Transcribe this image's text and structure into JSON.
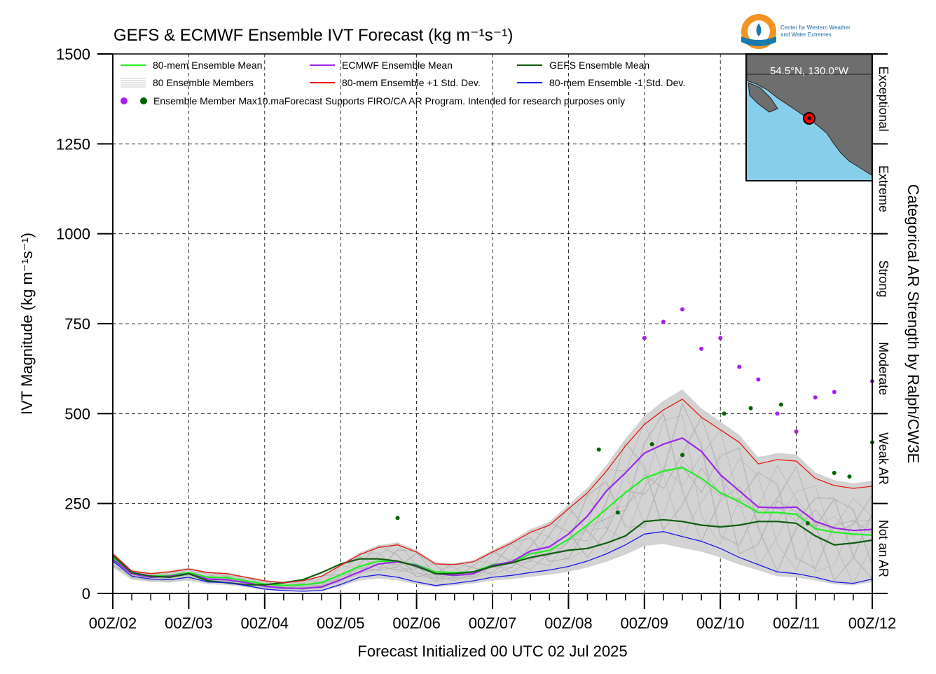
{
  "chart_data": {
    "type": "line",
    "title": "GEFS & ECMWF Ensemble IVT Forecast (kg m⁻¹s⁻¹)",
    "xlabel": "Forecast Initialized 00 UTC 02 Jul 2025",
    "ylabel": "IVT Magnitude (kg m⁻¹s⁻¹)",
    "right_label": "Categorical AR Strength by Ralph/CW3E",
    "ylim": [
      0,
      1500
    ],
    "xlim": [
      0,
      10
    ],
    "x_unit": "days since 00Z/02",
    "x_ticks": [
      0,
      1,
      2,
      3,
      4,
      5,
      6,
      7,
      8,
      9,
      10
    ],
    "x_tick_labels": [
      "00Z/02",
      "00Z/03",
      "00Z/04",
      "00Z/05",
      "00Z/06",
      "00Z/07",
      "00Z/08",
      "00Z/09",
      "00Z/10",
      "00Z/11",
      "00Z/12"
    ],
    "y_ticks": [
      0,
      250,
      500,
      750,
      1000,
      1250,
      1500
    ],
    "y_tick_labels": [
      "0",
      "250",
      "500",
      "750",
      "1000",
      "1250",
      "1500"
    ],
    "grid": true,
    "categories_ar": [
      {
        "label": "Not an AR",
        "min": 0,
        "max": 250
      },
      {
        "label": "Weak AR",
        "min": 250,
        "max": 500
      },
      {
        "label": "Moderate",
        "min": 500,
        "max": 750
      },
      {
        "label": "Strong",
        "min": 750,
        "max": 1000
      },
      {
        "label": "Extreme",
        "min": 1000,
        "max": 1250
      },
      {
        "label": "Exceptional",
        "min": 1250,
        "max": 1500
      }
    ],
    "legend": {
      "placement": "top-left",
      "items": [
        {
          "label": "80-mem Ensemble Mean",
          "color": "#22ee22",
          "kind": "line"
        },
        {
          "label": "ECMWF Ensemble Mean",
          "color": "#9b27e6",
          "kind": "line"
        },
        {
          "label": "GEFS Ensemble Mean",
          "color": "#0f5e0f",
          "kind": "line"
        },
        {
          "label": "80 Ensemble Members",
          "color": "#b4b4b4",
          "kind": "lines"
        },
        {
          "label": "80-mem Ensemble +1 Std. Dev.",
          "color": "#e8180e",
          "kind": "line"
        },
        {
          "label": "80-mem Ensemble -1 Std. Dev.",
          "color": "#1a1ae6",
          "kind": "line"
        }
      ],
      "note": "Ensemble Member Max10.maForecast Supports FIRO/CA AR Program. Intended for research purposes only"
    },
    "inset_label": "54.5°N, 130.0°W",
    "logo_text": [
      "Center for Western Weather",
      "and Water Extremes"
    ],
    "series": [
      {
        "name": "80-mem Ensemble Mean",
        "color": "#22ee22",
        "x": [
          0,
          0.25,
          0.5,
          0.75,
          1,
          1.25,
          1.5,
          1.75,
          2,
          2.25,
          2.5,
          2.75,
          3,
          3.25,
          3.5,
          3.75,
          4,
          4.25,
          4.5,
          4.75,
          5,
          5.25,
          5.5,
          5.75,
          6,
          6.25,
          6.5,
          6.75,
          7,
          7.25,
          7.5,
          7.75,
          8,
          8.25,
          8.5,
          8.75,
          9,
          9.25,
          9.5,
          9.75,
          10
        ],
        "values": [
          100,
          55,
          48,
          50,
          58,
          45,
          44,
          35,
          26,
          22,
          24,
          30,
          52,
          75,
          90,
          88,
          80,
          60,
          58,
          60,
          80,
          85,
          110,
          120,
          150,
          190,
          235,
          280,
          320,
          340,
          350,
          320,
          280,
          255,
          225,
          225,
          220,
          180,
          170,
          165,
          162
        ]
      },
      {
        "name": "ECMWF Ensemble Mean",
        "color": "#9b27e6",
        "x": [
          0,
          0.25,
          0.5,
          0.75,
          1,
          1.25,
          1.5,
          1.75,
          2,
          2.25,
          2.5,
          2.75,
          3,
          3.25,
          3.5,
          3.75,
          4,
          4.25,
          4.5,
          4.75,
          5,
          5.25,
          5.5,
          5.75,
          6,
          6.25,
          6.5,
          6.75,
          7,
          7.25,
          7.5,
          7.75,
          8,
          8.25,
          8.5,
          8.75,
          9,
          9.25,
          9.5,
          9.75,
          10
        ],
        "values": [
          95,
          55,
          45,
          48,
          55,
          40,
          38,
          30,
          20,
          15,
          14,
          18,
          38,
          60,
          82,
          88,
          78,
          55,
          50,
          55,
          78,
          88,
          118,
          130,
          165,
          215,
          285,
          335,
          390,
          415,
          432,
          395,
          330,
          285,
          240,
          238,
          240,
          200,
          182,
          175,
          178
        ]
      },
      {
        "name": "GEFS Ensemble Mean",
        "color": "#0f5e0f",
        "x": [
          0,
          0.25,
          0.5,
          0.75,
          1,
          1.25,
          1.5,
          1.75,
          2,
          2.25,
          2.5,
          2.75,
          3,
          3.25,
          3.5,
          3.75,
          4,
          4.25,
          4.5,
          4.75,
          5,
          5.25,
          5.5,
          5.75,
          6,
          6.25,
          6.5,
          6.75,
          7,
          7.25,
          7.5,
          7.75,
          8,
          8.25,
          8.5,
          8.75,
          9,
          9.25,
          9.5,
          9.75,
          10
        ],
        "values": [
          105,
          58,
          48,
          45,
          55,
          35,
          30,
          24,
          24,
          30,
          38,
          58,
          82,
          96,
          96,
          90,
          75,
          55,
          55,
          60,
          75,
          85,
          100,
          110,
          120,
          125,
          140,
          160,
          200,
          205,
          200,
          190,
          185,
          190,
          200,
          200,
          195,
          160,
          135,
          140,
          148
        ]
      },
      {
        "name": "80-mem Ensemble +1 Std. Dev.",
        "color": "#e8180e",
        "x": [
          0,
          0.25,
          0.5,
          0.75,
          1,
          1.25,
          1.5,
          1.75,
          2,
          2.25,
          2.5,
          2.75,
          3,
          3.25,
          3.5,
          3.75,
          4,
          4.25,
          4.5,
          4.75,
          5,
          5.25,
          5.5,
          5.75,
          6,
          6.25,
          6.5,
          6.75,
          7,
          7.25,
          7.5,
          7.75,
          8,
          8.25,
          8.5,
          8.75,
          9,
          9.25,
          9.5,
          9.75,
          10
        ],
        "values": [
          110,
          62,
          55,
          60,
          68,
          58,
          55,
          45,
          35,
          30,
          35,
          48,
          78,
          108,
          128,
          135,
          115,
          82,
          80,
          88,
          115,
          140,
          170,
          190,
          235,
          280,
          340,
          410,
          470,
          510,
          540,
          490,
          455,
          420,
          360,
          372,
          368,
          320,
          300,
          292,
          298
        ]
      },
      {
        "name": "80-mem Ensemble -1 Std. Dev.",
        "color": "#1a1ae6",
        "x": [
          0,
          0.25,
          0.5,
          0.75,
          1,
          1.25,
          1.5,
          1.75,
          2,
          2.25,
          2.5,
          2.75,
          3,
          3.25,
          3.5,
          3.75,
          4,
          4.25,
          4.5,
          4.75,
          5,
          5.25,
          5.5,
          5.75,
          6,
          6.25,
          6.5,
          6.75,
          7,
          7.25,
          7.5,
          7.75,
          8,
          8.25,
          8.5,
          8.75,
          9,
          9.25,
          9.5,
          9.75,
          10
        ],
        "values": [
          90,
          48,
          40,
          38,
          45,
          32,
          30,
          22,
          12,
          8,
          6,
          8,
          25,
          45,
          52,
          45,
          32,
          22,
          28,
          35,
          45,
          50,
          58,
          65,
          75,
          90,
          110,
          135,
          165,
          172,
          158,
          145,
          125,
          100,
          80,
          60,
          55,
          45,
          32,
          28,
          40
        ]
      }
    ],
    "ecmwf_max_points": {
      "color": "#a020f0",
      "x": [
        7,
        7.25,
        7.5,
        7.75,
        8,
        8.25,
        8.5,
        8.75,
        9,
        9.25,
        9.5,
        10
      ],
      "values": [
        710,
        755,
        790,
        680,
        710,
        630,
        595,
        500,
        450,
        545,
        560,
        590
      ]
    },
    "gefs_max_points": {
      "color": "#006400",
      "x": [
        3.75,
        6.4,
        6.65,
        7.1,
        7.5,
        8.05,
        8.4,
        8.8,
        9.15,
        9.5,
        9.7,
        10
      ],
      "values": [
        210,
        400,
        225,
        415,
        385,
        500,
        515,
        525,
        195,
        335,
        325,
        420
      ]
    }
  }
}
